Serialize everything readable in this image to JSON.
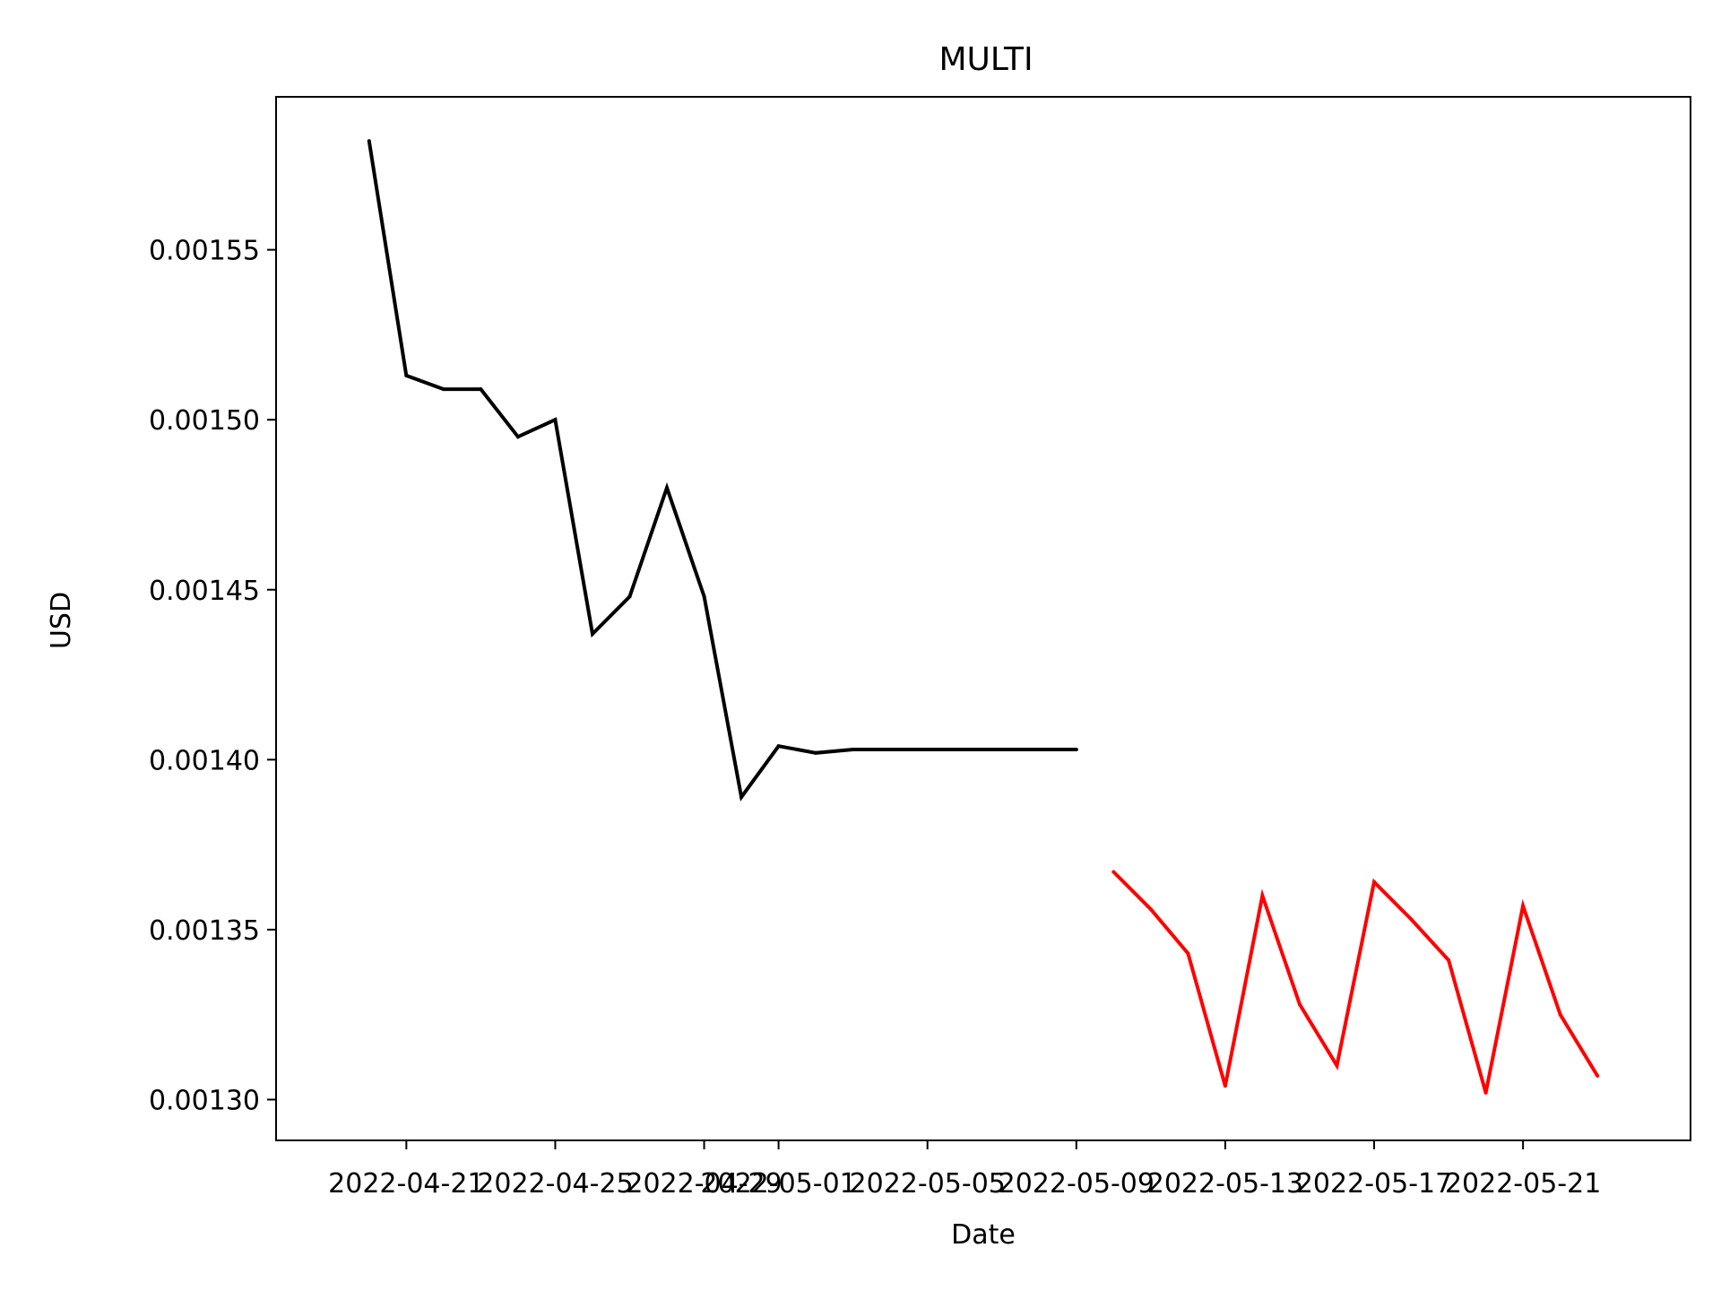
{
  "chart_data": {
    "type": "line",
    "title": "MULTI",
    "xlabel": "Date",
    "ylabel": "USD",
    "ylim": [
      0.001288,
      0.001595
    ],
    "xlim": [
      "2022-04-17T12:00",
      "2022-05-25T12:00"
    ],
    "grid": false,
    "x_ticks": [
      "2022-04-21",
      "2022-04-25",
      "2022-04-29",
      "2022-05-01",
      "2022-05-05",
      "2022-05-09",
      "2022-05-13",
      "2022-05-17",
      "2022-05-21"
    ],
    "y_ticks": [
      "0.00130",
      "0.00135",
      "0.00140",
      "0.00145",
      "0.00150",
      "0.00155"
    ],
    "series": [
      {
        "color": "#000000",
        "x": [
          "2022-04-20",
          "2022-04-21",
          "2022-04-22",
          "2022-04-23",
          "2022-04-24",
          "2022-04-25",
          "2022-04-26",
          "2022-04-27",
          "2022-04-28",
          "2022-04-29",
          "2022-04-30",
          "2022-05-01",
          "2022-05-02",
          "2022-05-03",
          "2022-05-04",
          "2022-05-05",
          "2022-05-06",
          "2022-05-07",
          "2022-05-08",
          "2022-05-09"
        ],
        "values": [
          0.001582,
          0.001513,
          0.001509,
          0.001509,
          0.001495,
          0.0015,
          0.001437,
          0.001448,
          0.00148,
          0.001448,
          0.001389,
          0.001404,
          0.001402,
          0.001403,
          0.001403,
          0.001403,
          0.001403,
          0.001403,
          0.001403,
          0.001403
        ]
      },
      {
        "color": "#ff0000",
        "x": [
          "2022-05-10",
          "2022-05-11",
          "2022-05-12",
          "2022-05-13",
          "2022-05-14",
          "2022-05-15",
          "2022-05-16",
          "2022-05-17",
          "2022-05-18",
          "2022-05-19",
          "2022-05-20",
          "2022-05-21",
          "2022-05-22",
          "2022-05-23"
        ],
        "values": [
          0.001367,
          0.001356,
          0.001343,
          0.001304,
          0.00136,
          0.001328,
          0.00131,
          0.001364,
          0.001353,
          0.001341,
          0.001302,
          0.001357,
          0.001325,
          0.001307
        ]
      }
    ]
  }
}
